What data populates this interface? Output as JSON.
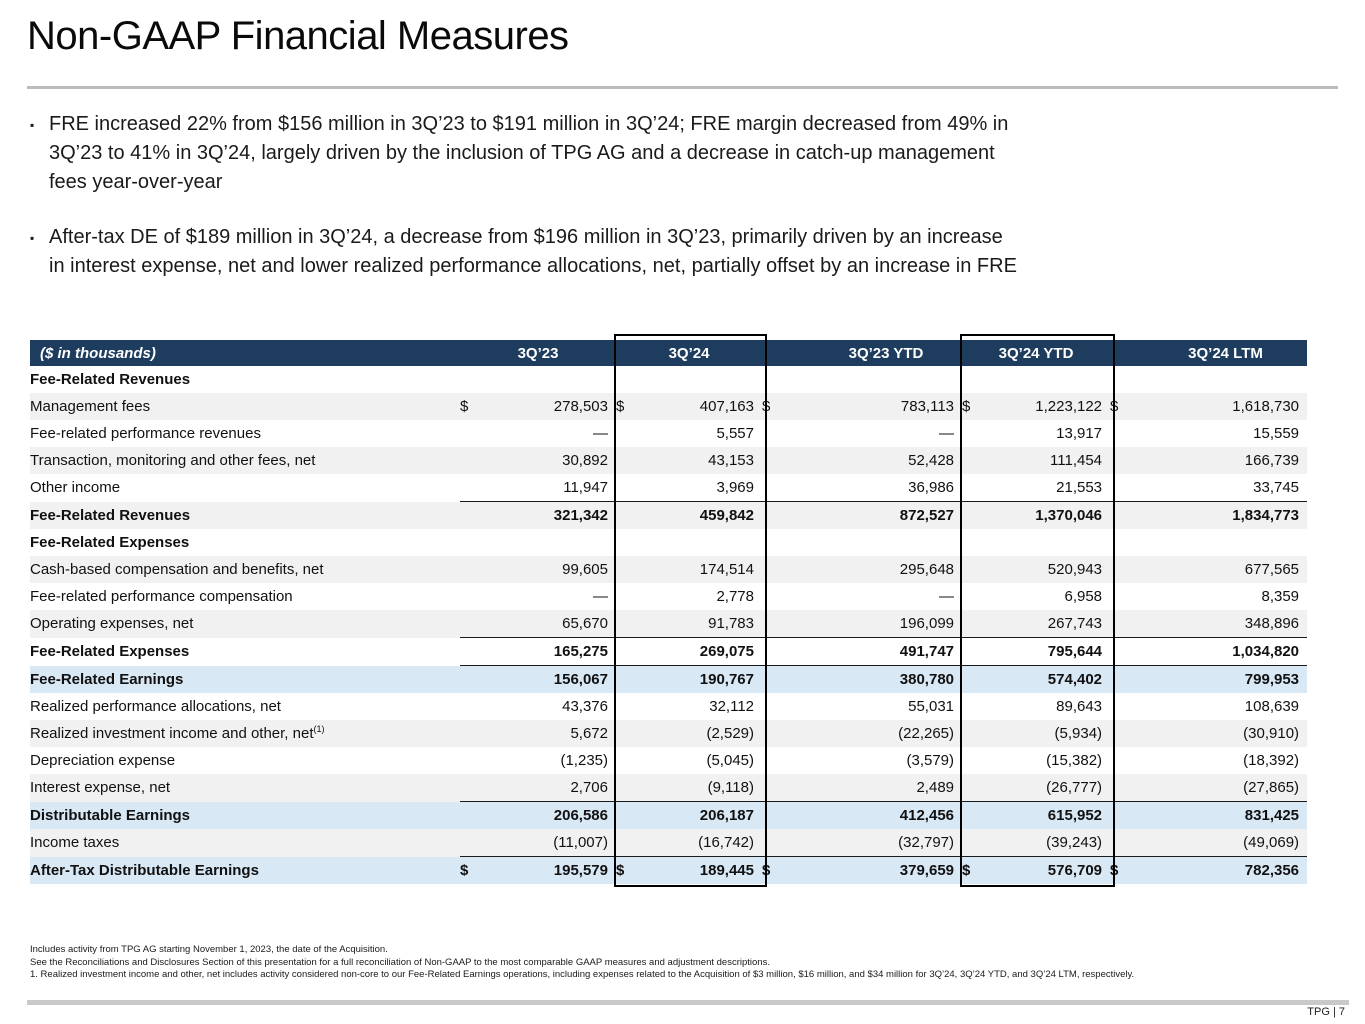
{
  "title": "Non-GAAP Financial Measures",
  "bullets": [
    {
      "lines": [
        "FRE increased 22% from $156 million in 3Q’23 to $191 million in 3Q’24; FRE margin decreased from 49% in",
        "3Q’23 to 41% in 3Q’24, largely driven by the inclusion of TPG AG and a decrease in catch-up management",
        "fees year-over-year"
      ]
    },
    {
      "lines": [
        "After-tax DE of $189 million in 3Q’24, a decrease from $196 million in 3Q’23, primarily driven by an increase",
        "in interest expense, net and lower realized performance allocations, net, partially offset by an increase in FRE"
      ]
    }
  ],
  "table": {
    "unit_label": "($ in thousands)",
    "columns": [
      "3Q’23",
      "3Q’24",
      "3Q’23 YTD",
      "3Q’24 YTD",
      "3Q’24 LTM"
    ],
    "highlighted_columns": [
      "3Q’24",
      "3Q’24 YTD"
    ],
    "colors": {
      "header_bg": "#1e3d5e",
      "highlight_row_bg": "#d9e8f5",
      "stripe_bg": "#f1f1f1",
      "box_border": "#000000"
    },
    "rows": [
      {
        "label": "Fee-Related Revenues",
        "section": true,
        "bold": true,
        "indent": "section",
        "bg": "white"
      },
      {
        "label": "Management fees",
        "indent": "data",
        "bg": "gray",
        "dollar": true,
        "values": [
          "278,503",
          "407,163",
          "783,113",
          "1,223,122",
          "1,618,730"
        ]
      },
      {
        "label": "Fee-related performance revenues",
        "indent": "data",
        "bg": "white",
        "values": [
          "—",
          "5,557",
          "—",
          "13,917",
          "15,559"
        ]
      },
      {
        "label": "Transaction, monitoring and other fees, net",
        "indent": "data",
        "bg": "gray",
        "values": [
          "30,892",
          "43,153",
          "52,428",
          "111,454",
          "166,739"
        ]
      },
      {
        "label": "Other income",
        "indent": "data",
        "bg": "white",
        "values": [
          "11,947",
          "3,969",
          "36,986",
          "21,553",
          "33,745"
        ]
      },
      {
        "label": "Fee-Related Revenues",
        "bold": true,
        "indent": "section",
        "bg": "gray",
        "topline": true,
        "values": [
          "321,342",
          "459,842",
          "872,527",
          "1,370,046",
          "1,834,773"
        ]
      },
      {
        "label": "Fee-Related Expenses",
        "section": true,
        "bold": true,
        "indent": "section",
        "bg": "white"
      },
      {
        "label": "Cash-based compensation and benefits, net",
        "indent": "data",
        "bg": "gray",
        "values": [
          "99,605",
          "174,514",
          "295,648",
          "520,943",
          "677,565"
        ]
      },
      {
        "label": "Fee-related performance compensation",
        "indent": "data",
        "bg": "white",
        "values": [
          "—",
          "2,778",
          "—",
          "6,958",
          "8,359"
        ]
      },
      {
        "label": "Operating expenses, net",
        "indent": "data",
        "bg": "gray",
        "values": [
          "65,670",
          "91,783",
          "196,099",
          "267,743",
          "348,896"
        ]
      },
      {
        "label": "Fee-Related Expenses",
        "bold": true,
        "indent": "section",
        "bg": "white",
        "topline": true,
        "values": [
          "165,275",
          "269,075",
          "491,747",
          "795,644",
          "1,034,820"
        ]
      },
      {
        "label": "Fee-Related Earnings",
        "bold": true,
        "indent": "deep",
        "bg": "blue",
        "topline": true,
        "values": [
          "156,067",
          "190,767",
          "380,780",
          "574,402",
          "799,953"
        ]
      },
      {
        "label": "Realized performance allocations, net",
        "indent": "data",
        "bg": "white",
        "values": [
          "43,376",
          "32,112",
          "55,031",
          "89,643",
          "108,639"
        ]
      },
      {
        "label": "Realized investment income and other, net",
        "sup": "(1)",
        "indent": "data",
        "bg": "gray",
        "values": [
          "5,672",
          "(2,529)",
          "(22,265)",
          "(5,934)",
          "(30,910)"
        ]
      },
      {
        "label": "Depreciation expense",
        "indent": "data",
        "bg": "white",
        "values": [
          "(1,235)",
          "(5,045)",
          "(3,579)",
          "(15,382)",
          "(18,392)"
        ]
      },
      {
        "label": "Interest expense, net",
        "indent": "data",
        "bg": "gray",
        "values": [
          "2,706",
          "(9,118)",
          "2,489",
          "(26,777)",
          "(27,865)"
        ]
      },
      {
        "label": "Distributable Earnings",
        "bold": true,
        "indent": "deep",
        "bg": "blue",
        "topline": true,
        "values": [
          "206,586",
          "206,187",
          "412,456",
          "615,952",
          "831,425"
        ]
      },
      {
        "label": "Income taxes",
        "indent": "data",
        "bg": "gray",
        "values": [
          "(11,007)",
          "(16,742)",
          "(32,797)",
          "(39,243)",
          "(49,069)"
        ]
      },
      {
        "label": "After-Tax Distributable Earnings",
        "bold": true,
        "indent": "deep",
        "bg": "blue",
        "dollar": true,
        "topline": true,
        "values": [
          "195,579",
          "189,445",
          "379,659",
          "576,709",
          "782,356"
        ]
      }
    ]
  },
  "footnotes": [
    "Includes activity from TPG AG starting November 1, 2023, the date of the Acquisition.",
    "See the Reconciliations and Disclosures Section of this presentation for a full reconciliation of Non-GAAP to the most comparable GAAP measures and adjustment descriptions.",
    "1. Realized investment income and other, net includes activity considered non-core to our Fee-Related Earnings operations, including expenses related to the Acquisition of $3 million, $16 million, and $34 million for 3Q’24, 3Q’24 YTD, and 3Q’24 LTM, respectively."
  ],
  "footer": "TPG | 7"
}
